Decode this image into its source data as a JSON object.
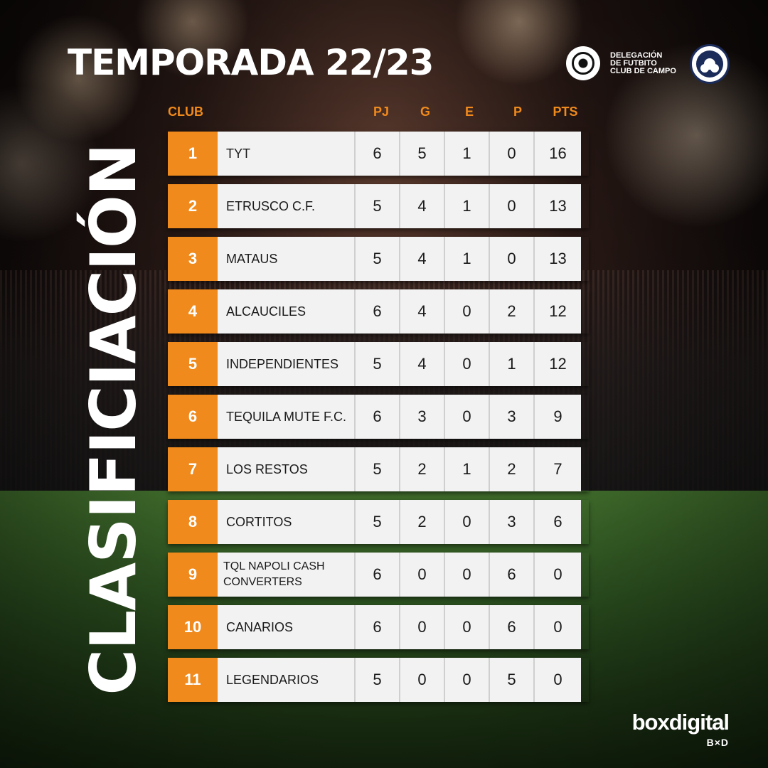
{
  "header": {
    "title": "TEMPORADA 22/23",
    "vertical_title": "CLASIFICIACIÓN",
    "org_lines": [
      "DELEGACIÓN",
      "DE FUTBITO",
      "CLUB DE CAMPO"
    ],
    "org_logo_icon": "football-icon",
    "club_seal_icon": "club-seal-icon"
  },
  "table": {
    "columns": {
      "club": "CLUB",
      "pj": "PJ",
      "g": "G",
      "e": "E",
      "p": "P",
      "pts": "PTS"
    },
    "rows": [
      {
        "pos": "1",
        "club": "TYT",
        "pj": "6",
        "g": "5",
        "e": "1",
        "p": "0",
        "pts": "16"
      },
      {
        "pos": "2",
        "club": "ETRUSCO C.F.",
        "pj": "5",
        "g": "4",
        "e": "1",
        "p": "0",
        "pts": "13"
      },
      {
        "pos": "3",
        "club": "MATAUS",
        "pj": "5",
        "g": "4",
        "e": "1",
        "p": "0",
        "pts": "13"
      },
      {
        "pos": "4",
        "club": "ALCAUCILES",
        "pj": "6",
        "g": "4",
        "e": "0",
        "p": "2",
        "pts": "12"
      },
      {
        "pos": "5",
        "club": "INDEPENDIENTES",
        "pj": "5",
        "g": "4",
        "e": "0",
        "p": "1",
        "pts": "12"
      },
      {
        "pos": "6",
        "club": "TEQUILA MUTE  F.C.",
        "pj": "6",
        "g": "3",
        "e": "0",
        "p": "3",
        "pts": "9"
      },
      {
        "pos": "7",
        "club": "LOS RESTOS",
        "pj": "5",
        "g": "2",
        "e": "1",
        "p": "2",
        "pts": "7"
      },
      {
        "pos": "8",
        "club": "CORTITOS",
        "pj": "5",
        "g": "2",
        "e": "0",
        "p": "3",
        "pts": "6"
      },
      {
        "pos": "9",
        "club": "TQL NAPOLI CASH CONVERTERS",
        "pj": "6",
        "g": "0",
        "e": "0",
        "p": "6",
        "pts": "0"
      },
      {
        "pos": "10",
        "club": "CANARIOS",
        "pj": "6",
        "g": "0",
        "e": "0",
        "p": "6",
        "pts": "0"
      },
      {
        "pos": "11",
        "club": "LEGENDARIOS",
        "pj": "5",
        "g": "0",
        "e": "0",
        "p": "5",
        "pts": "0"
      }
    ]
  },
  "brand": {
    "name": "boxdigital",
    "mark": "B×D"
  },
  "colors": {
    "accent": "#f08a1c",
    "row_bg": "#f2f2f2",
    "seal": "#1b2b5a"
  }
}
